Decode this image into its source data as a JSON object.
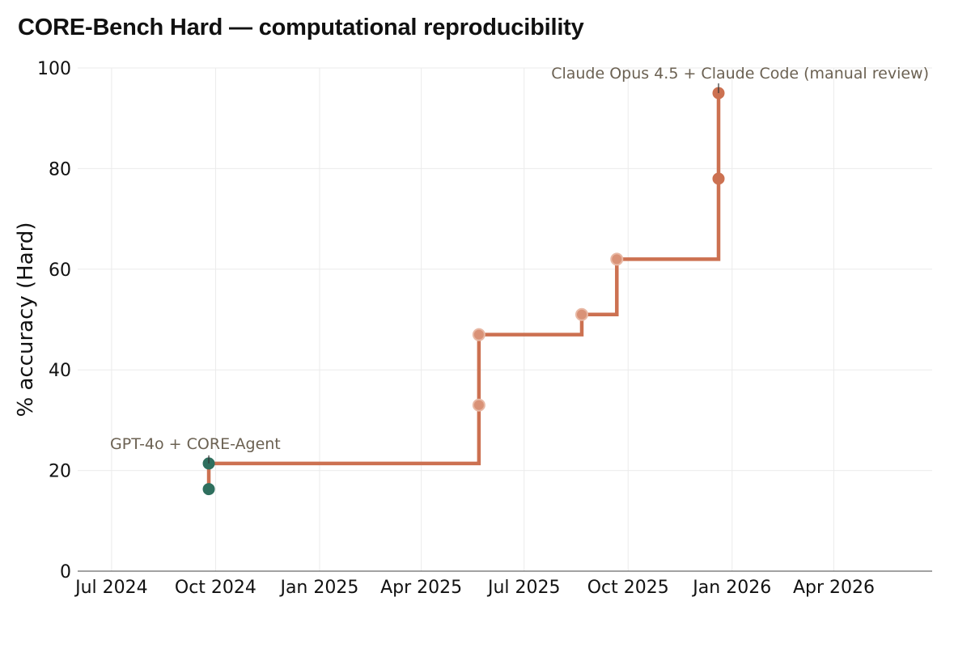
{
  "chart_data": {
    "type": "line",
    "title": "CORE-Bench Hard — computational reproducibility",
    "xlabel": "",
    "ylabel": "% accuracy (Hard)",
    "ylim": [
      0,
      100
    ],
    "xlim": [
      "2024-06-01",
      "2026-06-27"
    ],
    "x_ticks": [
      "2024-07-01",
      "2024-10-01",
      "2025-01-01",
      "2025-04-01",
      "2025-07-01",
      "2025-10-01",
      "2026-01-01",
      "2026-04-01"
    ],
    "x_tick_labels": [
      "Jul 2024",
      "Oct 2024",
      "Jan 2025",
      "Apr 2025",
      "Jul 2025",
      "Oct 2025",
      "Jan 2026",
      "Apr 2026"
    ],
    "y_ticks": [
      0,
      20,
      40,
      60,
      80,
      100
    ],
    "y_tick_labels": [
      "0",
      "20",
      "40",
      "60",
      "80",
      "100"
    ],
    "grid": true,
    "line_shape": "step-after (state-of-the-art frontier)",
    "series": [
      {
        "points": [
          {
            "x": "2024-09-25",
            "y": 16.3,
            "color": "#2f6f5e",
            "emphasis": "strong"
          },
          {
            "x": "2024-09-25",
            "y": 21.4,
            "color": "#2f6f5e",
            "emphasis": "strong"
          },
          {
            "x": "2025-05-22",
            "y": 33.0,
            "color": "#d99277",
            "emphasis": "light"
          },
          {
            "x": "2025-05-22",
            "y": 47.0,
            "color": "#d99277",
            "emphasis": "light"
          },
          {
            "x": "2025-08-21",
            "y": 51.0,
            "color": "#d99277",
            "emphasis": "light"
          },
          {
            "x": "2025-09-21",
            "y": 62.0,
            "color": "#d99277",
            "emphasis": "light"
          },
          {
            "x": "2025-12-20",
            "y": 78.0,
            "color": "#cc7151",
            "emphasis": "strong"
          },
          {
            "x": "2025-12-20",
            "y": 95.0,
            "color": "#cc7151",
            "emphasis": "strong"
          }
        ]
      }
    ],
    "annotations": [
      {
        "text": "GPT-4o + CORE-Agent",
        "x": "2024-09-25",
        "y": 21.4
      },
      {
        "text": "Claude Opus 4.5 + Claude Code (manual review)",
        "x": "2025-12-20",
        "y": 95.0
      }
    ],
    "colors": {
      "line": "#cc7151",
      "point_early": "#2f6f5e",
      "point_light": "#d99277",
      "point_strong": "#cc7151",
      "grid": "#ebebeb",
      "annotation_text": "#6b6152"
    }
  }
}
